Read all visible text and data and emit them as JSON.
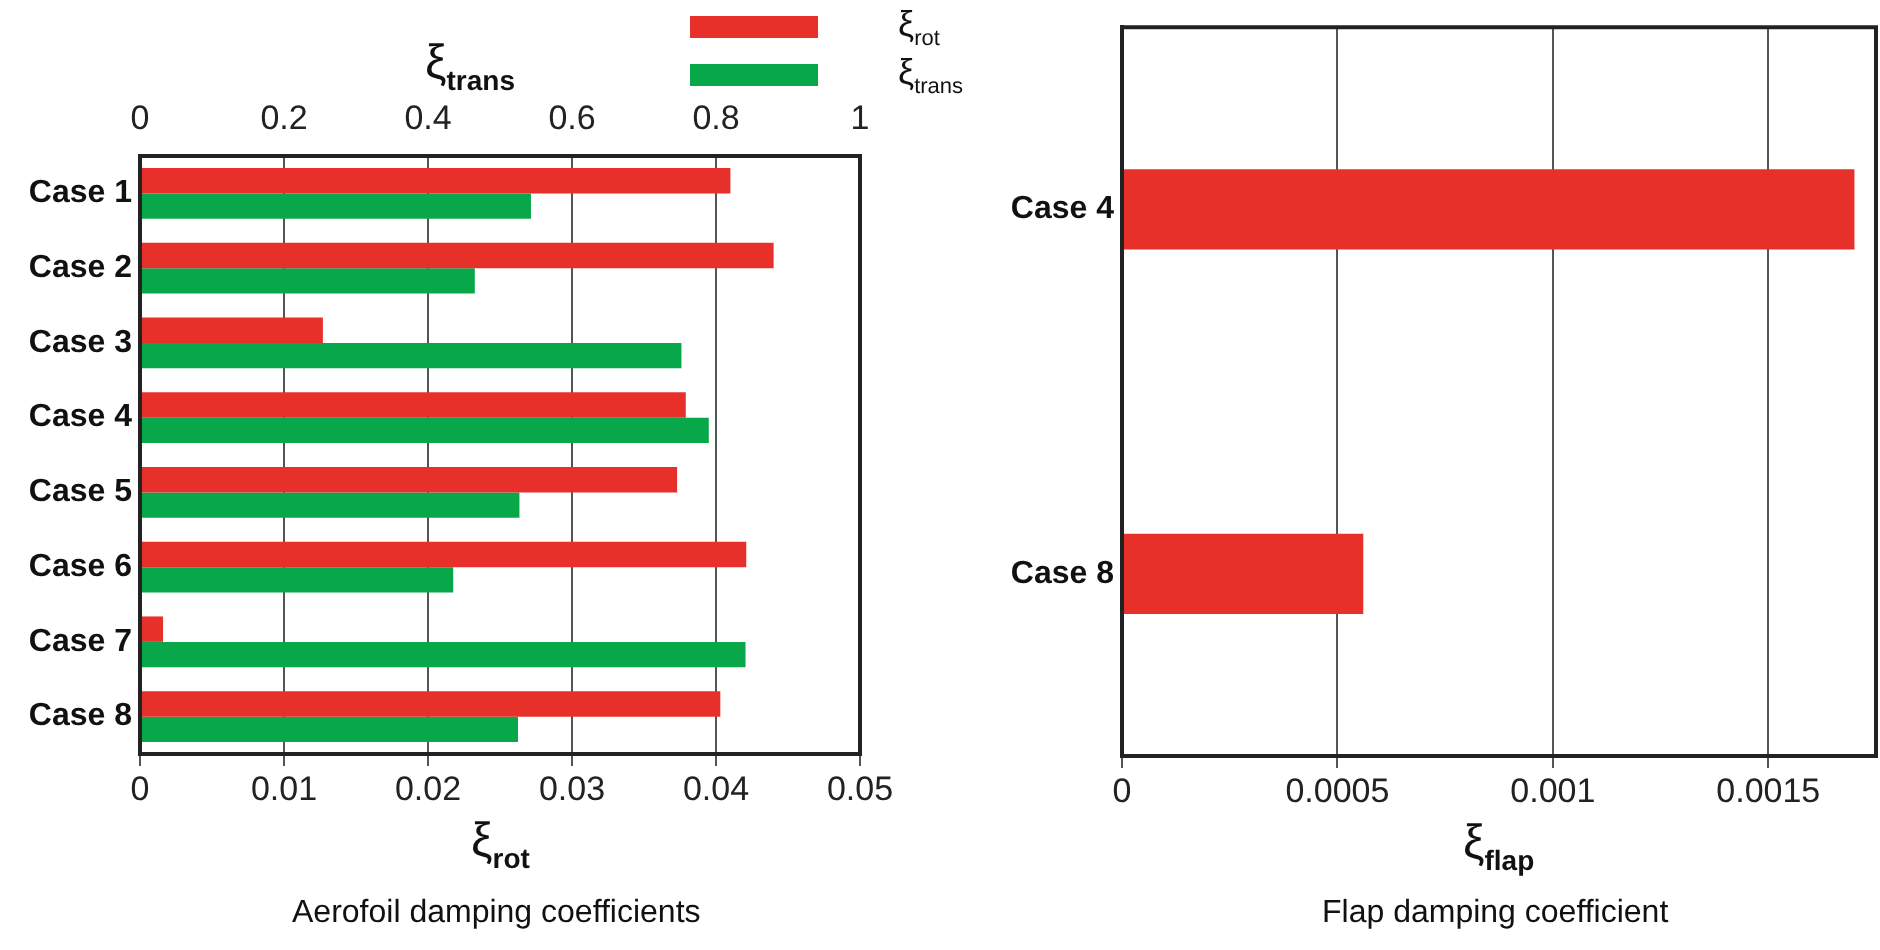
{
  "chart_data": [
    {
      "type": "bar",
      "orientation": "horizontal",
      "title": "Aerofoil damping coefficients",
      "xlabel": "ξ$_{rot}$",
      "x2label": "ξ$_{trans}$",
      "categories": [
        "Case 1",
        "Case 2",
        "Case 3",
        "Case 4",
        "Case 5",
        "Case 6",
        "Case 7",
        "Case 8"
      ],
      "series": [
        {
          "name": "ξ$_{rot}$",
          "color": "#e8302a",
          "values": [
            0.041,
            0.044,
            0.0127,
            0.0379,
            0.0373,
            0.0421,
            0.0016,
            0.0403
          ]
        },
        {
          "name": "ξ$_{trans}$",
          "color": "#08a84a",
          "axis": "x2",
          "values": [
            0.543,
            0.465,
            0.752,
            0.79,
            0.527,
            0.435,
            0.841,
            0.525
          ]
        }
      ],
      "xlim": [
        0,
        0.05
      ],
      "xticks": [
        0,
        0.01,
        0.02,
        0.03,
        0.04,
        0.05
      ],
      "x2lim": [
        0,
        1
      ],
      "x2ticks": [
        0,
        0.2,
        0.4,
        0.6,
        0.8,
        1
      ],
      "grid": "x",
      "legend": "top right"
    },
    {
      "type": "bar",
      "orientation": "horizontal",
      "title": "Flap damping coefficient",
      "xlabel": "ξ$_{flap}$",
      "categories": [
        "Case 4",
        "Case 8"
      ],
      "values": [
        0.0017,
        0.00056
      ],
      "color": "#e8302a",
      "xlim": [
        0,
        0.00175
      ],
      "xticks": [
        0,
        0.0005,
        0.001,
        0.0015
      ],
      "grid": "x"
    }
  ]
}
